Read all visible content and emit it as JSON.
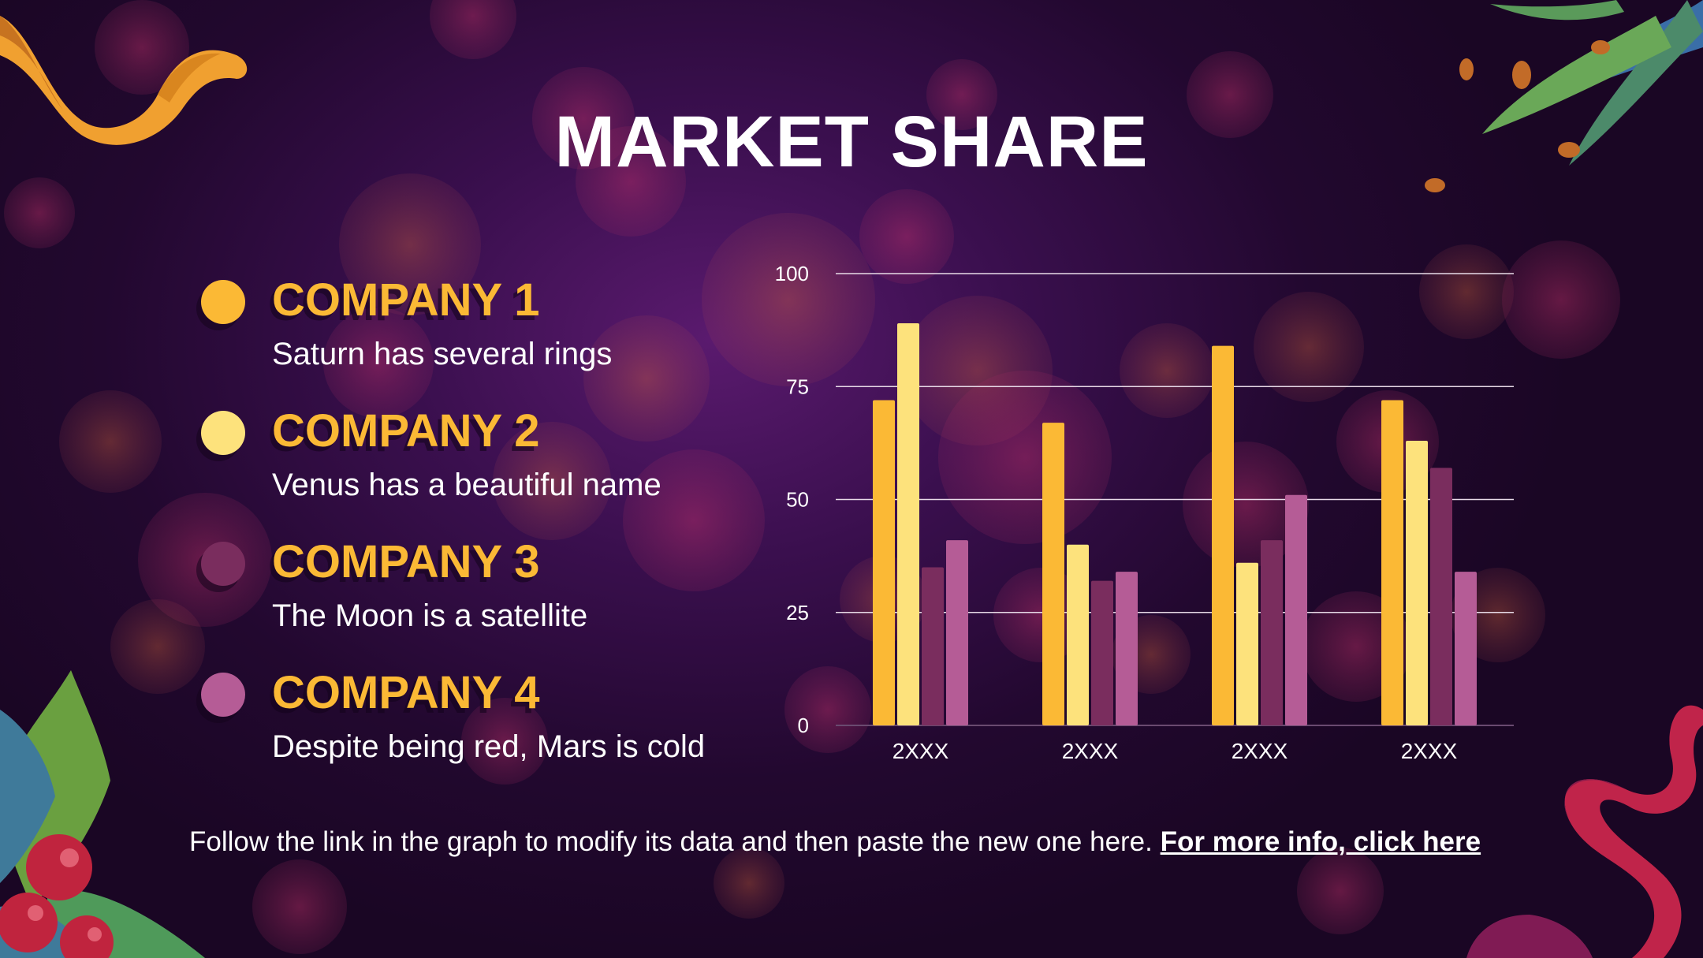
{
  "slide": {
    "title": "MARKET SHARE",
    "footer_text": "Follow the link in the graph to modify its data and then paste the new one here.",
    "footer_link": "For more info, click here"
  },
  "legend": [
    {
      "label": "COMPANY 1",
      "description": "Saturn has several rings",
      "color": "#fbb935"
    },
    {
      "label": "COMPANY 2",
      "description": "Venus has a beautiful name",
      "color": "#fde27c"
    },
    {
      "label": "COMPANY 3",
      "description": "The Moon is a satellite",
      "color": "#7a2d5e"
    },
    {
      "label": "COMPANY 4",
      "description": "Despite being red, Mars is cold",
      "color": "#b55c96"
    }
  ],
  "chart_data": {
    "type": "bar",
    "categories": [
      "2XXX",
      "2XXX",
      "2XXX",
      "2XXX"
    ],
    "series": [
      {
        "name": "COMPANY 1",
        "color": "#fbb935",
        "values": [
          72,
          67,
          84,
          72
        ]
      },
      {
        "name": "COMPANY 2",
        "color": "#fde27c",
        "values": [
          89,
          40,
          36,
          63
        ]
      },
      {
        "name": "COMPANY 3",
        "color": "#7a2d5e",
        "values": [
          35,
          32,
          41,
          57
        ]
      },
      {
        "name": "COMPANY 4",
        "color": "#b55c96",
        "values": [
          41,
          34,
          51,
          34
        ]
      }
    ],
    "ylim": [
      0,
      100
    ],
    "yticks": [
      0,
      25,
      50,
      75,
      100
    ],
    "grid": true,
    "legend": "left",
    "xlabel": "",
    "ylabel": ""
  }
}
